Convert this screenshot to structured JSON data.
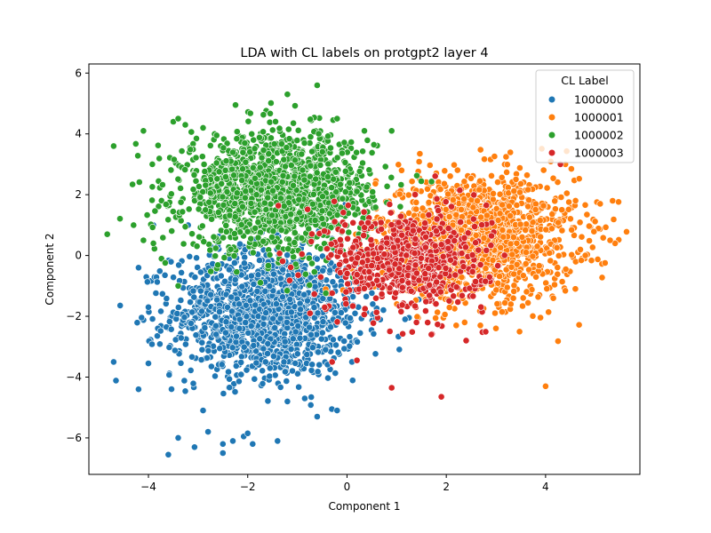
{
  "chart_data": {
    "type": "scatter",
    "title": "LDA with CL labels on protgpt2 layer 4",
    "xlabel": "Component 1",
    "ylabel": "Component 2",
    "xlim": [
      -5.2,
      5.9
    ],
    "ylim": [
      -7.2,
      6.3
    ],
    "xticks": [
      -4,
      -2,
      0,
      2,
      4
    ],
    "yticks": [
      -6,
      -4,
      -2,
      0,
      2,
      4,
      6
    ],
    "grid": false,
    "legend": {
      "title": "CL Label",
      "placement": "top-right"
    },
    "series": [
      {
        "name": "1000000",
        "color": "#1f77b4",
        "cluster": {
          "center": [
            -1.6,
            -1.9
          ],
          "spread": [
            0.95,
            1.05
          ],
          "count": 1400
        },
        "points": [
          [
            -4.7,
            -3.5
          ],
          [
            -3.6,
            -6.55
          ],
          [
            -3.4,
            -6.0
          ],
          [
            -2.5,
            -6.5
          ],
          [
            -2.5,
            -6.2
          ],
          [
            -1.9,
            -6.2
          ],
          [
            -1.4,
            -6.1
          ],
          [
            -2.0,
            -5.85
          ],
          [
            -2.3,
            -6.1
          ],
          [
            -4.2,
            -4.4
          ],
          [
            -4.0,
            -3.55
          ],
          [
            -4.2,
            -0.4
          ],
          [
            -4.0,
            -1.7
          ],
          [
            -3.2,
            1.0
          ],
          [
            -3.9,
            1.0
          ],
          [
            -2.9,
            -5.1
          ],
          [
            -2.8,
            -5.8
          ],
          [
            -1.2,
            -4.8
          ],
          [
            -0.2,
            -5.1
          ],
          [
            -0.6,
            -5.3
          ],
          [
            0.1,
            -3.5
          ]
        ]
      },
      {
        "name": "1000001",
        "color": "#ff7f0e",
        "cluster": {
          "center": [
            2.6,
            0.6
          ],
          "spread": [
            1.0,
            1.0
          ],
          "count": 1500
        },
        "points": [
          [
            5.4,
            0.4
          ],
          [
            5.3,
            0.5
          ],
          [
            5.35,
            1.8
          ],
          [
            5.1,
            1.7
          ],
          [
            4.8,
            0.0
          ],
          [
            4.6,
            -1.1
          ],
          [
            4.0,
            -4.3
          ],
          [
            4.4,
            3.0
          ],
          [
            2.2,
            -2.3
          ],
          [
            1.1,
            2.8
          ],
          [
            3.0,
            -2.4
          ],
          [
            3.3,
            -1.6
          ]
        ]
      },
      {
        "name": "1000002",
        "color": "#2ca02c",
        "cluster": {
          "center": [
            -1.4,
            2.1
          ],
          "spread": [
            0.95,
            0.95
          ],
          "count": 1500
        },
        "points": [
          [
            -4.7,
            3.6
          ],
          [
            -4.1,
            4.1
          ],
          [
            -3.5,
            4.4
          ],
          [
            -3.4,
            4.5
          ],
          [
            -1.2,
            5.3
          ],
          [
            -0.6,
            5.6
          ],
          [
            -0.2,
            4.5
          ],
          [
            0.35,
            4.1
          ],
          [
            0.9,
            4.1
          ],
          [
            -4.3,
            1.0
          ],
          [
            -4.1,
            0.5
          ],
          [
            -3.9,
            0.4
          ],
          [
            -3.4,
            -1.0
          ],
          [
            -2.9,
            4.2
          ]
        ]
      },
      {
        "name": "1000003",
        "color": "#d62728",
        "cluster": {
          "center": [
            1.2,
            -0.2
          ],
          "spread": [
            0.8,
            0.85
          ],
          "count": 600
        },
        "points": [
          [
            0.9,
            -4.35
          ],
          [
            1.9,
            -4.65
          ],
          [
            0.2,
            -3.45
          ],
          [
            -0.3,
            -3.5
          ],
          [
            1.7,
            -2.6
          ],
          [
            2.4,
            -2.8
          ],
          [
            1.4,
            -2.2
          ],
          [
            4.3,
            3.0
          ]
        ]
      }
    ]
  }
}
